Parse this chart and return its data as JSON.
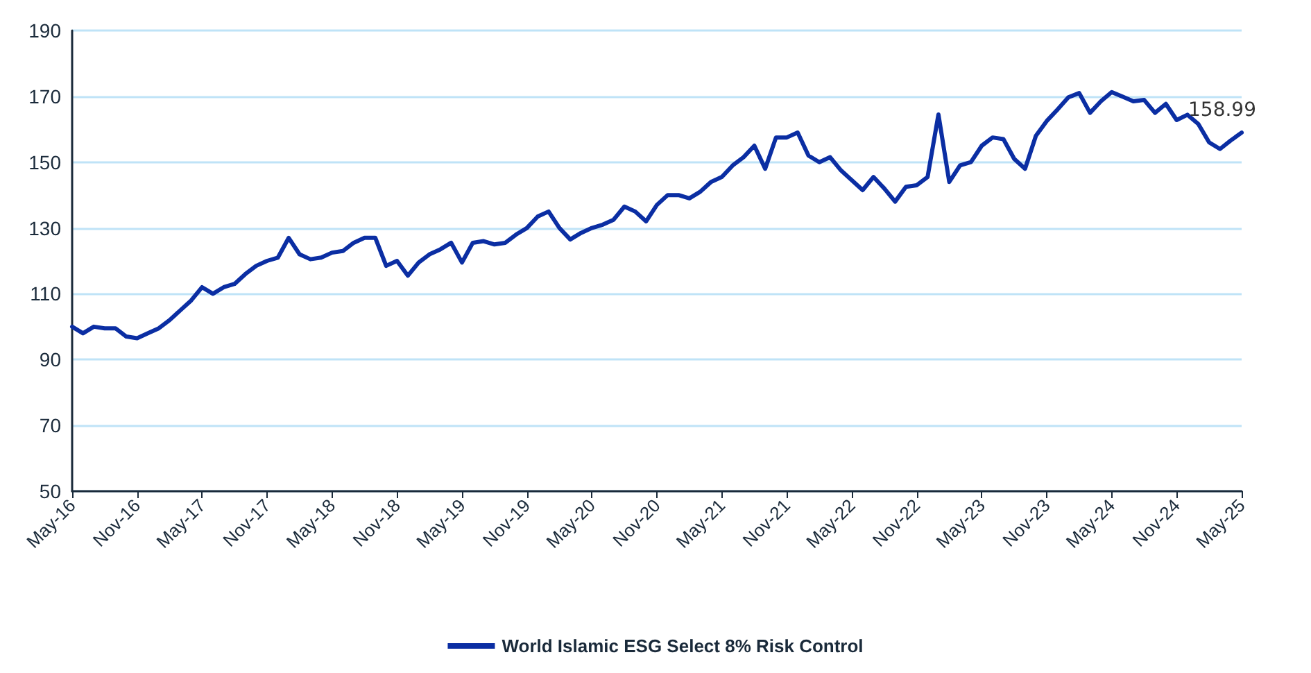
{
  "chart_data": {
    "type": "line",
    "categories": [
      "May-16",
      null,
      null,
      null,
      null,
      null,
      "Nov-16",
      null,
      null,
      null,
      null,
      null,
      "May-17",
      null,
      null,
      null,
      null,
      null,
      "Nov-17",
      null,
      null,
      null,
      null,
      null,
      "May-18",
      null,
      null,
      null,
      null,
      null,
      "Nov-18",
      null,
      null,
      null,
      null,
      null,
      "May-19",
      null,
      null,
      null,
      null,
      null,
      "Nov-19",
      null,
      null,
      null,
      null,
      null,
      "May-20",
      null,
      null,
      null,
      null,
      null,
      "Nov-20",
      null,
      null,
      null,
      null,
      null,
      "May-21",
      null,
      null,
      null,
      null,
      null,
      "Nov-21",
      null,
      null,
      null,
      null,
      null,
      "May-22",
      null,
      null,
      null,
      null,
      null,
      "Nov-22",
      null,
      null,
      null,
      null,
      null,
      "May-23",
      null,
      null,
      null,
      null,
      null,
      "Nov-23",
      null,
      null,
      null,
      null,
      null,
      "May-24",
      null,
      null,
      null,
      null,
      null,
      "Nov-24",
      null,
      null,
      null,
      null,
      null,
      "May-25"
    ],
    "series": [
      {
        "name": "World Islamic ESG Select 8% Risk Control",
        "color": "#0b2ea3",
        "values": [
          100,
          98,
          100,
          99.5,
          99.5,
          97,
          96.5,
          98,
          99.5,
          102,
          105,
          108,
          112,
          110,
          112,
          113,
          116,
          118.5,
          120,
          121,
          127,
          122,
          120.5,
          121,
          122.5,
          123,
          125.5,
          127,
          127,
          118.5,
          120,
          115.5,
          119.5,
          122,
          123.5,
          125.5,
          119.5,
          125.5,
          126,
          125,
          125.5,
          128,
          130,
          133.5,
          135,
          130,
          126.5,
          128.5,
          130,
          131,
          132.5,
          136.5,
          135,
          132,
          137,
          140,
          140,
          139,
          141,
          144,
          145.5,
          149,
          151.5,
          155,
          148,
          157.5,
          157.5,
          159,
          152,
          150,
          151.5,
          147.5,
          144.5,
          141.5,
          145.5,
          142,
          138,
          142.5,
          143,
          145.5,
          164.5,
          144,
          149,
          150,
          155,
          157.5,
          157,
          151,
          148,
          158,
          162.5,
          166,
          169.7,
          171,
          165,
          168.5,
          171.3,
          169.9,
          168.5,
          168.9,
          165,
          167.7,
          162.8,
          164.4,
          161.6,
          156,
          154,
          156.6,
          158.99
        ],
        "value_labels": [
          null,
          null,
          null,
          null,
          null,
          null,
          null,
          null,
          null,
          null,
          null,
          null,
          null,
          null,
          null,
          null,
          null,
          null,
          null,
          null,
          null,
          null,
          null,
          null,
          null,
          null,
          null,
          null,
          null,
          null,
          null,
          null,
          null,
          null,
          null,
          null,
          null,
          null,
          null,
          null,
          null,
          null,
          null,
          null,
          null,
          null,
          null,
          null,
          null,
          null,
          null,
          null,
          null,
          null,
          null,
          null,
          null,
          null,
          null,
          null,
          null,
          null,
          null,
          null,
          null,
          null,
          null,
          null,
          null,
          null,
          null,
          null,
          null,
          null,
          null,
          null,
          null,
          null,
          null,
          null,
          null,
          null,
          null,
          null,
          null,
          null,
          null,
          null,
          null,
          null,
          null,
          null,
          null,
          null,
          null,
          null,
          null,
          null,
          null,
          null,
          null,
          null,
          null,
          null,
          null,
          null,
          null,
          null,
          "158.99"
        ]
      }
    ],
    "ylim": [
      50,
      190
    ],
    "yticks": [
      50,
      70,
      90,
      110,
      130,
      150,
      170,
      190
    ],
    "grid": "y",
    "legend": "bottom",
    "marker": "none",
    "line_style": "solid"
  }
}
